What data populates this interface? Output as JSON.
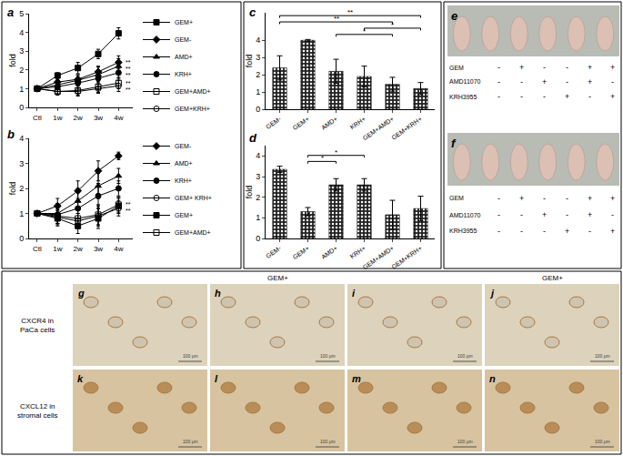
{
  "chart_data": [
    {
      "type": "line",
      "title": "a",
      "y_label": "fold",
      "categories": [
        "Ctl",
        "1w",
        "2w",
        "3w",
        "4w"
      ],
      "ylim": [
        0,
        5
      ],
      "yticks": [
        0,
        1,
        2,
        3,
        4,
        5
      ],
      "grid": false,
      "series": [
        {
          "name": "GEM+",
          "marker": "square",
          "values": [
            1,
            1.7,
            2.1,
            2.85,
            3.95
          ],
          "errors": [
            0,
            0.15,
            0.3,
            0.25,
            0.3
          ]
        },
        {
          "name": "GEM-",
          "marker": "diamond",
          "values": [
            1,
            1.35,
            1.5,
            1.9,
            2.4
          ],
          "errors": [
            0,
            0.15,
            0.2,
            0.3,
            0.35
          ],
          "significance": "**"
        },
        {
          "name": "AMD+",
          "marker": "triangle",
          "values": [
            1,
            1.2,
            1.45,
            1.75,
            2.2
          ],
          "errors": [
            0,
            0.2,
            0.3,
            0.4,
            0.4
          ],
          "significance": "**"
        },
        {
          "name": "KRH+",
          "marker": "circle",
          "values": [
            1,
            1.1,
            1.3,
            1.55,
            1.85
          ],
          "errors": [
            0,
            0.15,
            0.25,
            0.3,
            0.3
          ],
          "significance": "**"
        },
        {
          "name": "GEM+AMD+",
          "marker": "square-open",
          "values": [
            1,
            0.85,
            0.9,
            1.1,
            1.3
          ],
          "errors": [
            0,
            0.2,
            0.3,
            0.3,
            0.3
          ],
          "significance": "**"
        },
        {
          "name": "GEM+KRH+",
          "marker": "circle-open",
          "values": [
            1,
            0.85,
            0.85,
            1.0,
            1.15
          ],
          "errors": [
            0,
            0.15,
            0.2,
            0.25,
            0.3
          ],
          "significance": "**"
        }
      ]
    },
    {
      "type": "line",
      "title": "b",
      "y_label": "fold",
      "categories": [
        "Ctl",
        "1w",
        "2w",
        "3w",
        "4w"
      ],
      "ylim": [
        0,
        4
      ],
      "yticks": [
        0,
        1,
        2,
        3,
        4
      ],
      "grid": false,
      "series": [
        {
          "name": "GEM-",
          "marker": "diamond",
          "values": [
            1,
            1.3,
            1.9,
            2.7,
            3.3
          ],
          "errors": [
            0,
            0.3,
            0.4,
            0.4,
            0.15
          ]
        },
        {
          "name": "AMD+",
          "marker": "triangle",
          "values": [
            1,
            1.0,
            1.5,
            2.1,
            2.5
          ],
          "errors": [
            0,
            0.4,
            0.5,
            0.5,
            0.3
          ]
        },
        {
          "name": "KRH+",
          "marker": "circle",
          "values": [
            1,
            0.95,
            1.2,
            1.7,
            2.0
          ],
          "errors": [
            0,
            0.35,
            0.4,
            0.5,
            0.3
          ]
        },
        {
          "name": "GEM+ KRH+",
          "marker": "circle-open",
          "values": [
            1,
            0.85,
            0.7,
            0.9,
            1.2
          ],
          "errors": [
            0,
            0.3,
            0.3,
            0.4,
            0.3
          ],
          "significance": "**"
        },
        {
          "name": "GEM+",
          "marker": "square",
          "values": [
            1,
            0.8,
            0.5,
            0.8,
            1.3
          ],
          "errors": [
            0,
            0.3,
            0.3,
            0.4,
            0.3
          ]
        },
        {
          "name": "GEM+AMD+",
          "marker": "square-open",
          "values": [
            1,
            0.9,
            0.8,
            0.95,
            1.35
          ],
          "errors": [
            0,
            0.3,
            0.4,
            0.4,
            0.3
          ],
          "significance": "**"
        }
      ]
    },
    {
      "type": "bar",
      "title": "c",
      "y_label": "fold",
      "color": "#222222",
      "categories": [
        "GEM-",
        "GEM+",
        "AMD+",
        "KRH+",
        "GEM+AMD+",
        "GEM+KRH+"
      ],
      "values": [
        2.4,
        4.0,
        2.2,
        1.9,
        1.45,
        1.2
      ],
      "errors": [
        0.7,
        0.05,
        0.7,
        0.6,
        0.4,
        0.35
      ],
      "ylim": [
        0,
        5.6
      ],
      "yticks": [
        0,
        1,
        2,
        3,
        4
      ],
      "grid": false,
      "comparisons": [
        {
          "from": "GEM-",
          "to": "GEM+KRH+",
          "label": "**"
        },
        {
          "from": "GEM-",
          "to": "GEM+AMD+",
          "label": "**"
        },
        {
          "from": "KRH+",
          "to": "GEM+KRH+",
          "label": "*"
        },
        {
          "from": "AMD+",
          "to": "GEM+AMD+",
          "label": "*"
        }
      ]
    },
    {
      "type": "bar",
      "title": "d",
      "y_label": "fold",
      "color": "#222222",
      "categories": [
        "GEM-",
        "GEM+",
        "AMD+",
        "KRH+",
        "GEM+AMD+",
        "GEM+KRH+"
      ],
      "values": [
        3.35,
        1.3,
        2.6,
        2.6,
        1.15,
        1.45
      ],
      "errors": [
        0.15,
        0.2,
        0.3,
        0.3,
        0.7,
        0.6
      ],
      "ylim": [
        0,
        4.5
      ],
      "yticks": [
        0,
        1,
        2,
        3,
        4
      ],
      "grid": false,
      "comparisons": [
        {
          "from": "GEM+",
          "to": "KRH+",
          "label": "*"
        },
        {
          "from": "GEM+",
          "to": "AMD+",
          "label": "*"
        }
      ]
    }
  ],
  "panels": {
    "photos": [
      {
        "label": "e",
        "rows": [
          {
            "name": "GEM",
            "marks": [
              "-",
              "+",
              "-",
              "-",
              "+",
              "+"
            ]
          },
          {
            "name": "AMD11070",
            "marks": [
              "-",
              "-",
              "+",
              "-",
              "+",
              "-"
            ]
          },
          {
            "name": "KRH3955",
            "marks": [
              "-",
              "-",
              "-",
              "+",
              "-",
              "+"
            ]
          }
        ]
      },
      {
        "label": "f",
        "rows": [
          {
            "name": "GEM",
            "marks": [
              "-",
              "+",
              "-",
              "-",
              "+",
              "+"
            ]
          },
          {
            "name": "AMD11070",
            "marks": [
              "-",
              "-",
              "+",
              "-",
              "+",
              "-"
            ]
          },
          {
            "name": "KRH3955",
            "marks": [
              "-",
              "-",
              "-",
              "+",
              "-",
              "+"
            ]
          }
        ]
      }
    ],
    "ihc": {
      "row_labels": [
        [
          "CXCR4 in",
          "PaCa cells"
        ],
        [
          "CXCL12 in",
          "stromal cells"
        ]
      ],
      "column_headers": [
        null,
        "GEM+",
        null,
        "GEM+"
      ],
      "labels": [
        [
          "g",
          "h",
          "i",
          "j"
        ],
        [
          "k",
          "l",
          "m",
          "n"
        ]
      ],
      "scale_bar": "100 μm"
    }
  }
}
